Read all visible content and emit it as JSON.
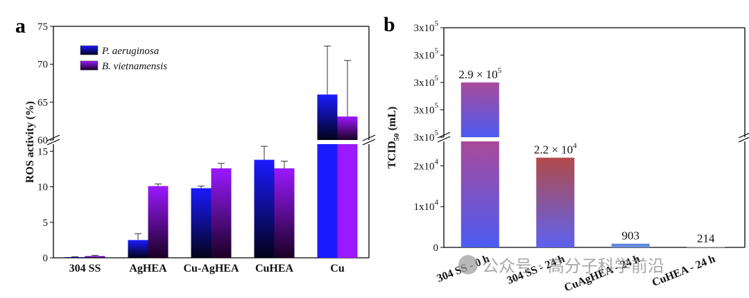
{
  "chart_data": [
    {
      "panel": "a",
      "type": "bar",
      "ylabel": "ROS activity (%)",
      "categories": [
        "304 SS",
        "AgHEA",
        "Cu-AgHEA",
        "CuHEA",
        "Cu"
      ],
      "series": [
        {
          "name": "P. aeruginosa",
          "values": [
            0.1,
            2.5,
            9.8,
            13.8,
            66
          ],
          "errors": [
            0.05,
            0.9,
            0.3,
            1.9,
            6.4
          ],
          "color_top": "#1a1aff",
          "color_bottom": "#02021a"
        },
        {
          "name": "B. vietnamensis",
          "values": [
            0.25,
            10.1,
            12.6,
            12.6,
            63.1
          ],
          "errors": [
            0.1,
            0.3,
            0.7,
            1.0,
            7.4
          ],
          "color_top": "#9b19ff",
          "color_bottom": "#1a0024"
        }
      ],
      "axis_break": true,
      "lower_range": [
        0,
        16
      ],
      "upper_range": [
        60,
        75
      ],
      "lower_ticks": [
        0,
        5,
        10,
        15
      ],
      "upper_ticks": [
        60,
        65,
        70,
        75
      ],
      "legend_position": "top-left"
    },
    {
      "panel": "b",
      "type": "bar",
      "ylabel_main": "TCID",
      "ylabel_sub": "50",
      "ylabel_unit": "(mL)",
      "categories": [
        "304 SS - 0 h",
        "304 SS - 24 h",
        "CuAgHEA - 24 h",
        "CuHEA - 24 h"
      ],
      "values": [
        290000,
        22000,
        903,
        214
      ],
      "value_labels": [
        {
          "mant": "2.9 × 10",
          "exp": "5"
        },
        {
          "mant": "2.2 × 10",
          "exp": "4"
        },
        {
          "mant": "903",
          "exp": ""
        },
        {
          "mant": "214",
          "exp": ""
        }
      ],
      "axis_break": true,
      "lower_range": [
        0,
        26000
      ],
      "lower_ticks": [
        {
          "v": 0,
          "mant": "0",
          "exp": ""
        },
        {
          "v": 10000,
          "mant": "1x10",
          "exp": "4"
        },
        {
          "v": 20000,
          "mant": "2x10",
          "exp": "4"
        }
      ],
      "upper_range": [
        270000,
        310000
      ],
      "upper_ticks": [
        {
          "v": 270000,
          "mant": "3x10",
          "exp": "5"
        },
        {
          "v": 280000,
          "mant": "3x10",
          "exp": "5"
        },
        {
          "v": 290000,
          "mant": "3x10",
          "exp": "5"
        },
        {
          "v": 300000,
          "mant": "3x10",
          "exp": "5"
        },
        {
          "v": 310000,
          "mant": "3x10",
          "exp": "5"
        }
      ],
      "bar_colors": [
        {
          "top": "#a94a9a",
          "bottom": "#4c5cf2"
        },
        {
          "top": "#b24a4a",
          "bottom": "#5e62f0"
        },
        {
          "top": "#5a7ed8",
          "bottom": "#6e96e0"
        },
        {
          "top": "#bbbbbb",
          "bottom": "#dddddd"
        }
      ]
    }
  ],
  "labels": {
    "panel_a": "a",
    "panel_b": "b"
  },
  "watermark": "公众号 · 高分子科学前沿"
}
